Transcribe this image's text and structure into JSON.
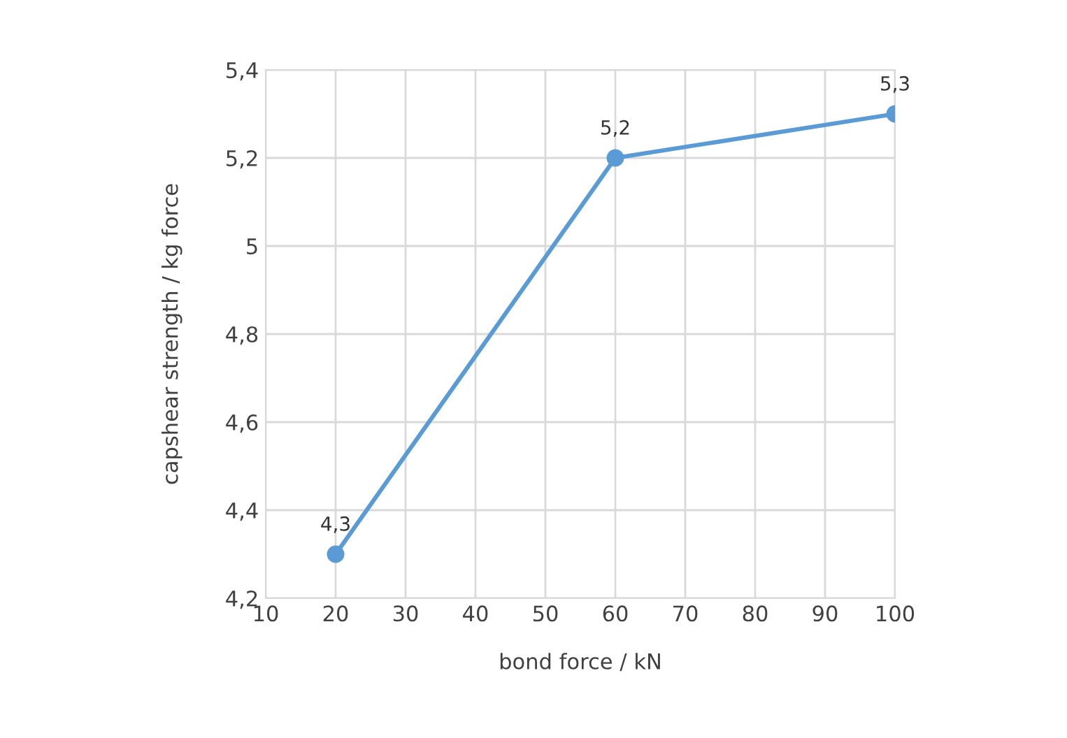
{
  "chart_data": {
    "type": "line",
    "xlabel": "bond force / kN",
    "ylabel": "capshear strength / kg force",
    "x": [
      20,
      60,
      100
    ],
    "series": [
      {
        "color": "#5b9bd5",
        "values": [
          4.3,
          5.2,
          5.3
        ],
        "value_labels": [
          "4,3",
          "5,2",
          "5,3"
        ]
      }
    ],
    "xlim": [
      10,
      100
    ],
    "xticks": [
      10,
      20,
      30,
      40,
      50,
      60,
      70,
      80,
      90,
      100
    ],
    "ylim": [
      4.2,
      5.4
    ],
    "yticks": [
      {
        "value": 4.2,
        "label": "4,2"
      },
      {
        "value": 4.4,
        "label": "4,4"
      },
      {
        "value": 4.6,
        "label": "4,6"
      },
      {
        "value": 4.8,
        "label": "4,8"
      },
      5,
      {
        "value": 5.2,
        "label": "5,2"
      },
      {
        "value": 5.4,
        "label": "5,4"
      }
    ],
    "grid": true,
    "marker": "circle",
    "line_style": "solid"
  }
}
